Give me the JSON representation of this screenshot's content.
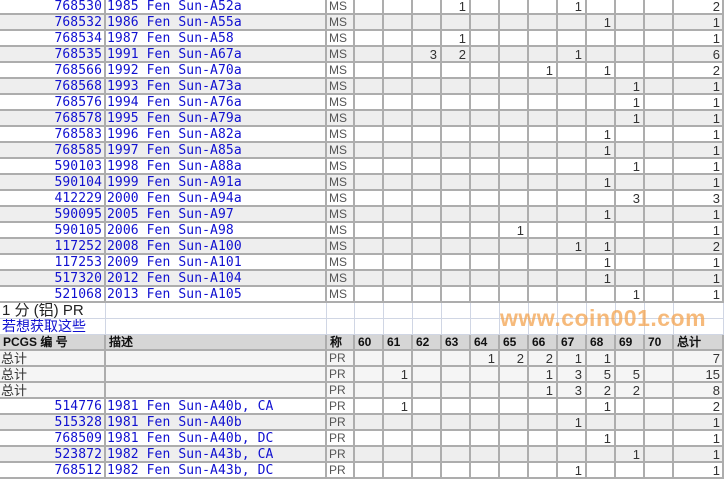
{
  "grade_columns": [
    "60",
    "61",
    "62",
    "63",
    "64",
    "65",
    "66",
    "67",
    "68",
    "69",
    "70"
  ],
  "ms_rows": [
    {
      "pcgs": "768530",
      "desc": "1985 Fen Sun-A52a",
      "grade": "MS",
      "counts": {
        "63": "1",
        "67": "1"
      },
      "total": "2"
    },
    {
      "pcgs": "768532",
      "desc": "1986 Fen Sun-A55a",
      "grade": "MS",
      "counts": {
        "68": "1"
      },
      "total": "1"
    },
    {
      "pcgs": "768534",
      "desc": "1987 Fen Sun-A58",
      "grade": "MS",
      "counts": {
        "63": "1"
      },
      "total": "1"
    },
    {
      "pcgs": "768535",
      "desc": "1991 Fen Sun-A67a",
      "grade": "MS",
      "counts": {
        "62": "3",
        "63": "2",
        "67": "1"
      },
      "total": "6"
    },
    {
      "pcgs": "768566",
      "desc": "1992 Fen Sun-A70a",
      "grade": "MS",
      "counts": {
        "66": "1",
        "68": "1"
      },
      "total": "2"
    },
    {
      "pcgs": "768568",
      "desc": "1993 Fen Sun-A73a",
      "grade": "MS",
      "counts": {
        "69": "1"
      },
      "total": "1"
    },
    {
      "pcgs": "768576",
      "desc": "1994 Fen Sun-A76a",
      "grade": "MS",
      "counts": {
        "69": "1"
      },
      "total": "1"
    },
    {
      "pcgs": "768578",
      "desc": "1995 Fen Sun-A79a",
      "grade": "MS",
      "counts": {
        "69": "1"
      },
      "total": "1"
    },
    {
      "pcgs": "768583",
      "desc": "1996 Fen Sun-A82a",
      "grade": "MS",
      "counts": {
        "68": "1"
      },
      "total": "1"
    },
    {
      "pcgs": "768585",
      "desc": "1997 Fen Sun-A85a",
      "grade": "MS",
      "counts": {
        "68": "1"
      },
      "total": "1"
    },
    {
      "pcgs": "590103",
      "desc": "1998 Fen Sun-A88a",
      "grade": "MS",
      "counts": {
        "69": "1"
      },
      "total": "1"
    },
    {
      "pcgs": "590104",
      "desc": "1999 Fen Sun-A91a",
      "grade": "MS",
      "counts": {
        "68": "1"
      },
      "total": "1"
    },
    {
      "pcgs": "412229",
      "desc": "2000 Fen Sun-A94a",
      "grade": "MS",
      "counts": {
        "69": "3"
      },
      "total": "3"
    },
    {
      "pcgs": "590095",
      "desc": "2005 Fen Sun-A97",
      "grade": "MS",
      "counts": {
        "68": "1"
      },
      "total": "1"
    },
    {
      "pcgs": "590105",
      "desc": "2006 Fen Sun-A98",
      "grade": "MS",
      "counts": {
        "65": "1"
      },
      "total": "1"
    },
    {
      "pcgs": "117252",
      "desc": "2008 Fen Sun-A100",
      "grade": "MS",
      "counts": {
        "67": "1",
        "68": "1"
      },
      "total": "2"
    },
    {
      "pcgs": "117253",
      "desc": "2009 Fen Sun-A101",
      "grade": "MS",
      "counts": {
        "68": "1"
      },
      "total": "1"
    },
    {
      "pcgs": "517320",
      "desc": "2012 Fen Sun-A104",
      "grade": "MS",
      "counts": {
        "68": "1"
      },
      "total": "1"
    },
    {
      "pcgs": "521068",
      "desc": "2013 Fen Sun-A105",
      "grade": "MS",
      "counts": {
        "69": "1"
      },
      "total": "1"
    }
  ],
  "section": {
    "title": "1 分 (铝) PR",
    "link": "若想获取这些",
    "headers": {
      "pcgs": "PCGS 编 号",
      "desc": "描述",
      "grade": "称",
      "total": "总计"
    }
  },
  "total_rows": [
    {
      "label": "总计",
      "grade": "PR",
      "counts": {
        "64": "1",
        "65": "2",
        "66": "2",
        "67": "1",
        "68": "1"
      },
      "total": "7"
    },
    {
      "label": "总计",
      "grade": "PR",
      "counts": {
        "61": "1",
        "66": "1",
        "67": "3",
        "68": "5",
        "69": "5"
      },
      "total": "15"
    },
    {
      "label": "总计",
      "grade": "PR",
      "counts": {
        "66": "1",
        "67": "3",
        "68": "2",
        "69": "2"
      },
      "total": "8"
    }
  ],
  "pr_rows": [
    {
      "pcgs": "514776",
      "desc": "1981 Fen Sun-A40b, CA",
      "grade": "PR",
      "counts": {
        "61": "1",
        "68": "1"
      },
      "total": "2"
    },
    {
      "pcgs": "515328",
      "desc": "1981 Fen Sun-A40b",
      "grade": "PR",
      "counts": {
        "67": "1"
      },
      "total": "1"
    },
    {
      "pcgs": "768509",
      "desc": "1981 Fen Sun-A40b, DC",
      "grade": "PR",
      "counts": {
        "68": "1"
      },
      "total": "1"
    },
    {
      "pcgs": "523872",
      "desc": "1982 Fen Sun-A43b, CA",
      "grade": "PR",
      "counts": {
        "69": "1"
      },
      "total": "1"
    },
    {
      "pcgs": "768512",
      "desc": "1982 Fen Sun-A43b, DC",
      "grade": "PR",
      "counts": {
        "67": "1"
      },
      "total": "1"
    }
  ],
  "watermark": "www.coin001.com"
}
